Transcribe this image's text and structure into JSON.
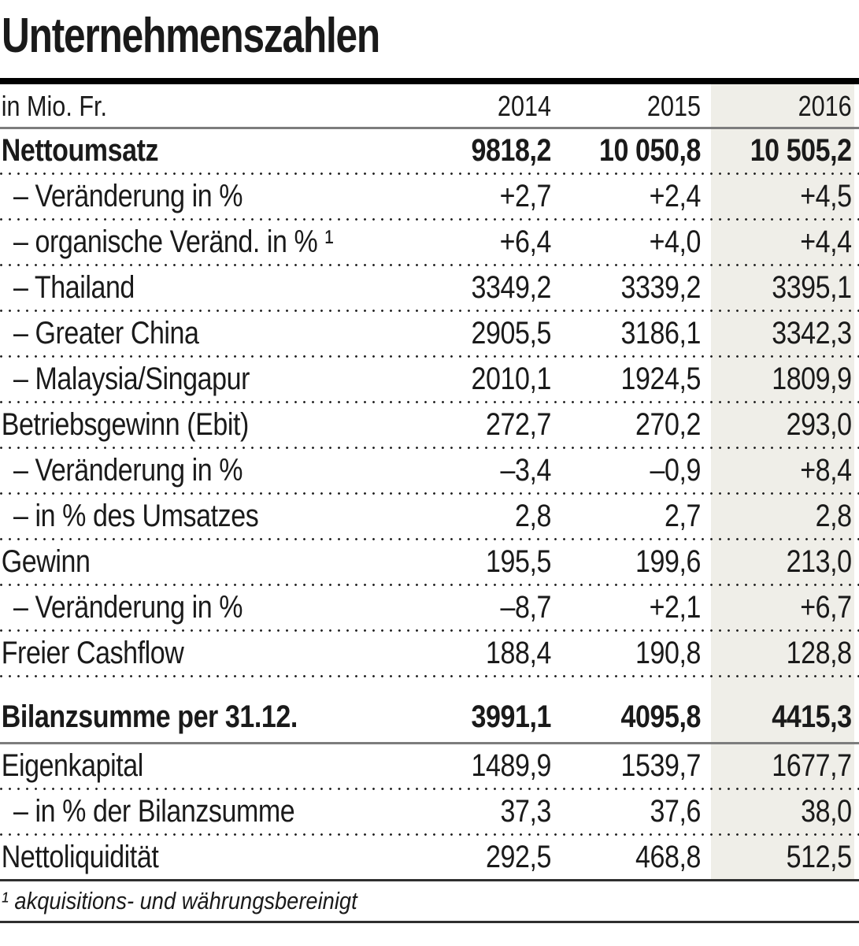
{
  "title": "Unternehmenszahlen",
  "header": {
    "unit_label": "in Mio. Fr.",
    "years": [
      "2014",
      "2015",
      "2016"
    ]
  },
  "table": {
    "rows": [
      {
        "label": "Nettoumsatz",
        "values": [
          "9818,2",
          "10 050,8",
          "10 505,2"
        ],
        "style": "bold",
        "indent": false,
        "sep": "dotted",
        "extra_top": false
      },
      {
        "label": "– Veränderung in %",
        "values": [
          "+2,7",
          "+2,4",
          "+4,5"
        ],
        "style": "plain",
        "indent": true,
        "sep": "dotted",
        "extra_top": false
      },
      {
        "label": "– organische Veränd. in % ¹",
        "values": [
          "+6,4",
          "+4,0",
          "+4,4"
        ],
        "style": "plain",
        "indent": true,
        "sep": "dotted",
        "extra_top": false
      },
      {
        "label": "– Thailand",
        "values": [
          "3349,2",
          "3339,2",
          "3395,1"
        ],
        "style": "plain",
        "indent": true,
        "sep": "dotted",
        "extra_top": false
      },
      {
        "label": "– Greater China",
        "values": [
          "2905,5",
          "3186,1",
          "3342,3"
        ],
        "style": "plain",
        "indent": true,
        "sep": "dotted",
        "extra_top": false
      },
      {
        "label": "– Malaysia/Singapur",
        "values": [
          "2010,1",
          "1924,5",
          "1809,9"
        ],
        "style": "plain",
        "indent": true,
        "sep": "dotted",
        "extra_top": false
      },
      {
        "label": "Betriebsgewinn (Ebit)",
        "values": [
          "272,7",
          "270,2",
          "293,0"
        ],
        "style": "plain",
        "indent": false,
        "sep": "dotted",
        "extra_top": false
      },
      {
        "label": "– Veränderung in %",
        "values": [
          "–3,4",
          "–0,9",
          "+8,4"
        ],
        "style": "plain",
        "indent": true,
        "sep": "dotted",
        "extra_top": false
      },
      {
        "label": "– in % des Umsatzes",
        "values": [
          "2,8",
          "2,7",
          "2,8"
        ],
        "style": "plain",
        "indent": true,
        "sep": "dotted",
        "extra_top": false
      },
      {
        "label": "Gewinn",
        "values": [
          "195,5",
          "199,6",
          "213,0"
        ],
        "style": "plain",
        "indent": false,
        "sep": "dotted",
        "extra_top": false
      },
      {
        "label": "– Veränderung in %",
        "values": [
          "–8,7",
          "+2,1",
          "+6,7"
        ],
        "style": "plain",
        "indent": true,
        "sep": "dotted",
        "extra_top": false
      },
      {
        "label": "Freier Cashflow",
        "values": [
          "188,4",
          "190,8",
          "128,8"
        ],
        "style": "plain",
        "indent": false,
        "sep": "dotted",
        "extra_top": false
      },
      {
        "label": "Bilanzsumme per 31.12.",
        "values": [
          "3991,1",
          "4095,8",
          "4415,3"
        ],
        "style": "bold",
        "indent": false,
        "sep": "solid-gray",
        "extra_top": true
      },
      {
        "label": "Eigenkapital",
        "values": [
          "1489,9",
          "1539,7",
          "1677,7"
        ],
        "style": "plain",
        "indent": false,
        "sep": "dotted",
        "extra_top": false
      },
      {
        "label": "– in % der Bilanzsumme",
        "values": [
          "37,3",
          "37,6",
          "38,0"
        ],
        "style": "plain",
        "indent": true,
        "sep": "dotted",
        "extra_top": false
      },
      {
        "label": "Nettoliquidität",
        "values": [
          "292,5",
          "468,8",
          "512,5"
        ],
        "style": "plain",
        "indent": false,
        "sep": "solid-dark",
        "extra_top": false
      }
    ]
  },
  "footnote": "¹ akquisitions- und währungsbereinigt",
  "colors": {
    "highlight_column_bg": "#efeee8",
    "text": "#1a1a1a",
    "rule_black": "#000000",
    "rule_gray": "#7d7d7d",
    "rule_dark": "#2f2f2f"
  },
  "chart_data": {
    "type": "table",
    "title": "Unternehmenszahlen",
    "unit": "in Mio. Fr.",
    "columns": [
      "2014",
      "2015",
      "2016"
    ],
    "highlighted_column": "2016",
    "rows": [
      {
        "label": "Nettoumsatz",
        "values": [
          9818.2,
          10050.8,
          10505.2
        ]
      },
      {
        "label": "Veränderung in %",
        "values": [
          2.7,
          2.4,
          4.5
        ]
      },
      {
        "label": "organische Veränd. in %",
        "values": [
          6.4,
          4.0,
          4.4
        ]
      },
      {
        "label": "Thailand",
        "values": [
          3349.2,
          3339.2,
          3395.1
        ]
      },
      {
        "label": "Greater China",
        "values": [
          2905.5,
          3186.1,
          3342.3
        ]
      },
      {
        "label": "Malaysia/Singapur",
        "values": [
          2010.1,
          1924.5,
          1809.9
        ]
      },
      {
        "label": "Betriebsgewinn (Ebit)",
        "values": [
          272.7,
          270.2,
          293.0
        ]
      },
      {
        "label": "Veränderung in %",
        "values": [
          -3.4,
          -0.9,
          8.4
        ]
      },
      {
        "label": "in % des Umsatzes",
        "values": [
          2.8,
          2.7,
          2.8
        ]
      },
      {
        "label": "Gewinn",
        "values": [
          195.5,
          199.6,
          213.0
        ]
      },
      {
        "label": "Veränderung in %",
        "values": [
          -8.7,
          2.1,
          6.7
        ]
      },
      {
        "label": "Freier Cashflow",
        "values": [
          188.4,
          190.8,
          128.8
        ]
      },
      {
        "label": "Bilanzsumme per 31.12.",
        "values": [
          3991.1,
          4095.8,
          4415.3
        ]
      },
      {
        "label": "Eigenkapital",
        "values": [
          1489.9,
          1539.7,
          1677.7
        ]
      },
      {
        "label": "in % der Bilanzsumme",
        "values": [
          37.3,
          37.6,
          38.0
        ]
      },
      {
        "label": "Nettoliquidität",
        "values": [
          292.5,
          468.8,
          512.5
        ]
      }
    ],
    "footnote": "1 akquisitions- und währungsbereinigt"
  }
}
